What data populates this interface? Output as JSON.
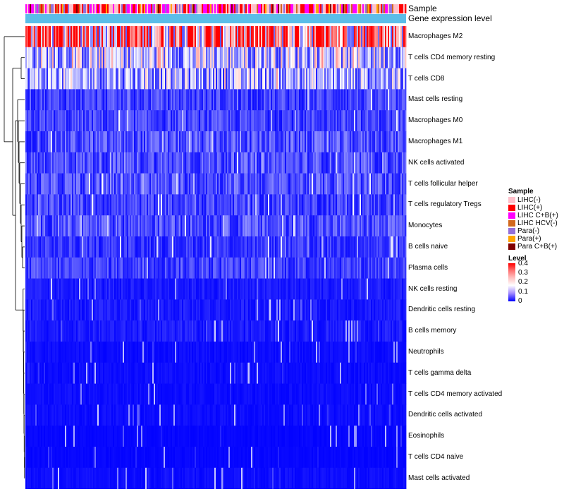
{
  "chart_data": {
    "type": "heatmap",
    "annotation_tracks": [
      "Sample",
      "Gene expression level"
    ],
    "rows": [
      {
        "label": "Macrophages M2",
        "mean": 0.3
      },
      {
        "label": "T cells CD4 memory resting",
        "mean": 0.15
      },
      {
        "label": "T cells CD8",
        "mean": 0.13
      },
      {
        "label": "Mast cells resting",
        "mean": 0.05
      },
      {
        "label": "Macrophages M0",
        "mean": 0.05
      },
      {
        "label": "Macrophages M1",
        "mean": 0.06
      },
      {
        "label": "NK cells activated",
        "mean": 0.06
      },
      {
        "label": "T cells follicular helper",
        "mean": 0.06
      },
      {
        "label": "T cells regulatory  Tregs",
        "mean": 0.05
      },
      {
        "label": "Monocytes",
        "mean": 0.06
      },
      {
        "label": "B cells naive",
        "mean": 0.04
      },
      {
        "label": "Plasma cells",
        "mean": 0.05
      },
      {
        "label": "NK cells resting",
        "mean": 0.02
      },
      {
        "label": "Dendritic cells resting",
        "mean": 0.02
      },
      {
        "label": "B cells memory",
        "mean": 0.02
      },
      {
        "label": "Neutrophils",
        "mean": 0.01
      },
      {
        "label": "T cells gamma delta",
        "mean": 0.01
      },
      {
        "label": "T cells CD4 memory activated",
        "mean": 0.01
      },
      {
        "label": "Dendritic cells activated",
        "mean": 0.01
      },
      {
        "label": "Eosinophils",
        "mean": 0.005
      },
      {
        "label": "T cells CD4 naive",
        "mean": 0.005
      },
      {
        "label": "Mast cells activated",
        "mean": 0.01
      }
    ],
    "legend_sample": {
      "title": "Sample",
      "entries": [
        {
          "label": "LIHC(-)",
          "color": "#ffc0cb"
        },
        {
          "label": "LIHC(+)",
          "color": "#ff0000"
        },
        {
          "label": "LIHC C+B(+)",
          "color": "#ff00ff"
        },
        {
          "label": "LIHC HCV(-)",
          "color": "#d2691e"
        },
        {
          "label": "Para(-)",
          "color": "#9370db"
        },
        {
          "label": "Para(+)",
          "color": "#ffa500"
        },
        {
          "label": "Para C+B(+)",
          "color": "#800000"
        }
      ]
    },
    "legend_level": {
      "title": "Level",
      "ticks": [
        "0.4",
        "0.3",
        "0.2",
        "0.1",
        "0"
      ],
      "range": [
        0,
        0.4
      ]
    },
    "colors": {
      "expression_track": "#5bbde8",
      "low": "#0000ff",
      "mid": "#ffffff",
      "high": "#ff0000"
    }
  }
}
